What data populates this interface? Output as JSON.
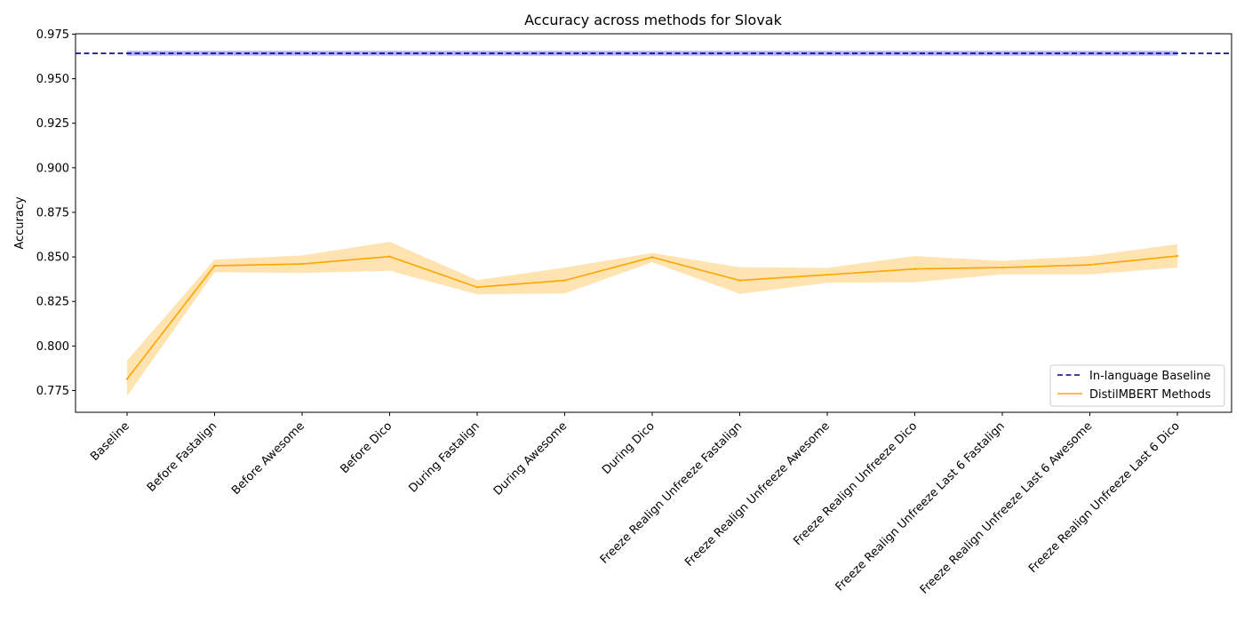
{
  "chart_data": {
    "type": "line",
    "title": "Accuracy across methods for Slovak",
    "xlabel": "",
    "ylabel": "Accuracy",
    "ylim": [
      0.7628,
      0.9752
    ],
    "yticks": [
      0.775,
      0.8,
      0.825,
      0.85,
      0.875,
      0.9,
      0.925,
      0.95,
      0.975
    ],
    "ytick_labels": [
      "0.775",
      "0.800",
      "0.825",
      "0.850",
      "0.875",
      "0.900",
      "0.925",
      "0.950",
      "0.975"
    ],
    "categories": [
      "Baseline",
      "Before Fastalign",
      "Before Awesome",
      "Before Dico",
      "During Fastalign",
      "During Awesome",
      "During Dico",
      "Freeze Realign Unfreeze Fastalign",
      "Freeze Realign Unfreeze Awesome",
      "Freeze Realign Unfreeze Dico",
      "Freeze Realign Unfreeze Last 6 Fastalign",
      "Freeze Realign Unfreeze Last 6 Awesome",
      "Freeze Realign Unfreeze Last 6 Dico"
    ],
    "grid": false,
    "legend_position": "lower right",
    "baseline": {
      "name": "In-language Baseline",
      "value": 0.9642,
      "band_lower": 0.9629,
      "band_upper": 0.9656,
      "color": "#00008b",
      "band_color": "#0000ff",
      "style": "dashed"
    },
    "series": [
      {
        "name": "DistilMBERT Methods",
        "color": "#ffa500",
        "values": [
          0.7815,
          0.845,
          0.846,
          0.8502,
          0.833,
          0.8368,
          0.8498,
          0.8368,
          0.84,
          0.8432,
          0.844,
          0.8455,
          0.8505
        ],
        "lower": [
          0.7718,
          0.8415,
          0.841,
          0.8422,
          0.829,
          0.8295,
          0.847,
          0.8292,
          0.8355,
          0.8358,
          0.8402,
          0.8402,
          0.844
        ],
        "upper": [
          0.7918,
          0.8485,
          0.8508,
          0.8585,
          0.837,
          0.844,
          0.8522,
          0.8442,
          0.8438,
          0.8505,
          0.8478,
          0.8505,
          0.8572
        ]
      }
    ]
  }
}
